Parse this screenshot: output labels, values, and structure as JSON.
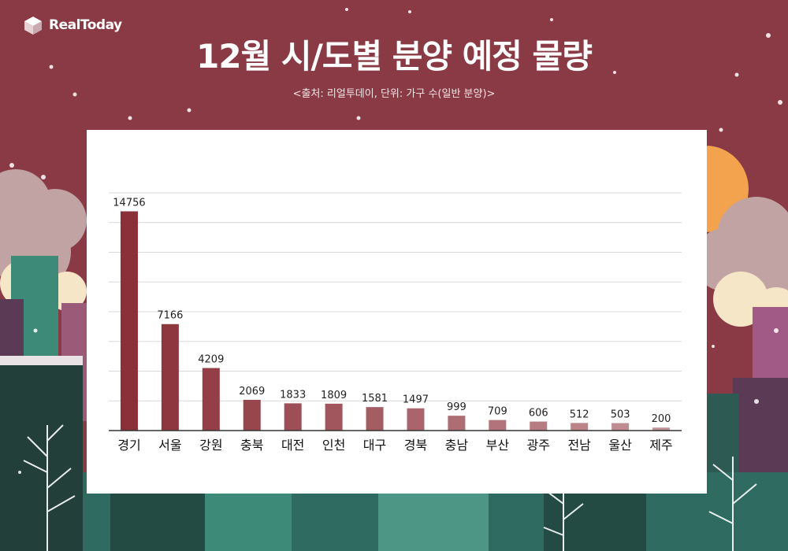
{
  "brand": {
    "name": "RealToday"
  },
  "header": {
    "title": "12월 시/도별 분양 예정 물량",
    "subtitle": "<출처: 리얼투데이, 단위: 가구 수(일반 분양)>"
  },
  "colors": {
    "background": "#8a3a45",
    "bar_top": "#8b2f38",
    "bar_bottom": "#c49398",
    "grid": "#d9d9d9",
    "axis": "#333333",
    "sun": "#f3a24d"
  },
  "chart_data": {
    "type": "bar",
    "title": "12월 시/도별 분양 예정 물량",
    "categories": [
      "경기",
      "서울",
      "강원",
      "충북",
      "대전",
      "인천",
      "대구",
      "경북",
      "충남",
      "부산",
      "광주",
      "전남",
      "울산",
      "제주"
    ],
    "values": [
      14756,
      7166,
      4209,
      2069,
      1833,
      1809,
      1581,
      1497,
      999,
      709,
      606,
      512,
      503,
      200
    ],
    "data_labels": [
      "14756",
      "7166",
      "4209",
      "2069",
      "1833",
      "1809",
      "1581",
      "1497",
      "999",
      "709",
      "606",
      "512",
      "503",
      "200"
    ],
    "ylim": [
      0,
      16000
    ],
    "grid": true,
    "legend": "none"
  }
}
